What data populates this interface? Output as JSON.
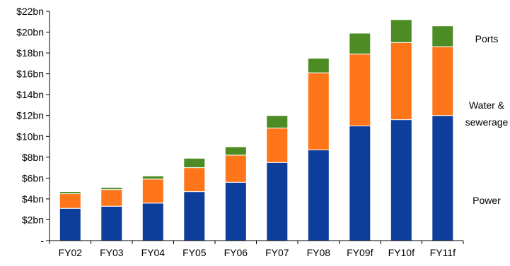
{
  "chart_data": {
    "type": "bar",
    "stacked": true,
    "categories": [
      "FY02",
      "FY03",
      "FY04",
      "FY05",
      "FY06",
      "FY07",
      "FY08",
      "FY09f",
      "FY10f",
      "FY11f"
    ],
    "series": [
      {
        "name": "Power",
        "color": "#0d3e9c",
        "values": [
          3.1,
          3.3,
          3.6,
          4.7,
          5.6,
          7.5,
          8.7,
          11.0,
          11.6,
          12.0
        ]
      },
      {
        "name": "Water & sewerage",
        "color": "#ff7519",
        "values": [
          1.4,
          1.6,
          2.3,
          2.3,
          2.6,
          3.3,
          7.4,
          6.9,
          7.4,
          6.6
        ]
      },
      {
        "name": "Ports",
        "color": "#4d8b24",
        "values": [
          0.2,
          0.2,
          0.3,
          0.9,
          0.8,
          1.2,
          1.4,
          2.0,
          2.2,
          2.0
        ]
      }
    ],
    "ylim": [
      0,
      22
    ],
    "yticks": [
      0,
      2,
      4,
      6,
      8,
      10,
      12,
      14,
      16,
      18,
      20,
      22
    ],
    "ytick_labels": [
      "-",
      "$2bn",
      "$4bn",
      "$6bn",
      "$8bn",
      "$10bn",
      "$12bn",
      "$14bn",
      "$16bn",
      "$18bn",
      "$20bn",
      "$22bn"
    ],
    "legend": {
      "placement": "right",
      "items": [
        {
          "lines": [
            "Ports"
          ]
        },
        {
          "lines": [
            "Water &",
            "sewerage"
          ]
        },
        {
          "lines": [
            "Power"
          ]
        }
      ]
    },
    "grid": false,
    "title": "",
    "xlabel": "",
    "ylabel": ""
  }
}
